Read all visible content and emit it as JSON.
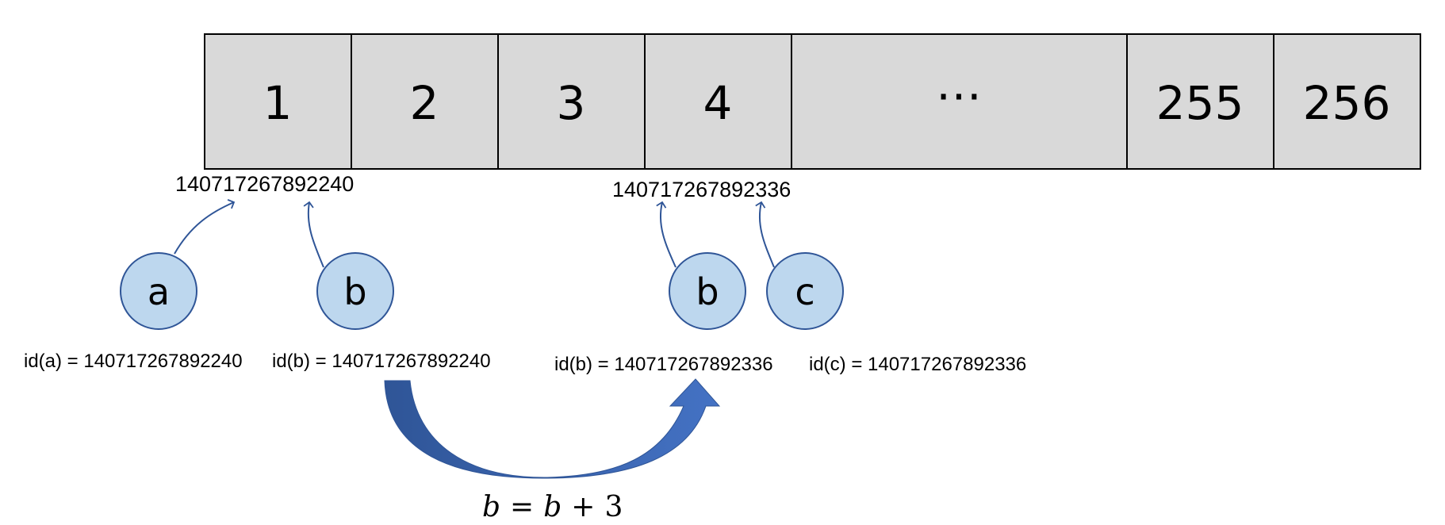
{
  "memory_cells": [
    "1",
    "2",
    "3",
    "4",
    "⋯",
    "255",
    "256"
  ],
  "addresses": {
    "first": "140717267892240",
    "second": "140717267892336"
  },
  "nodes": {
    "a1": "a",
    "b1": "b",
    "b2": "b",
    "c1": "c"
  },
  "id_labels": {
    "a": "id(a) = 140717267892240",
    "b_before": "id(b) = 140717267892240",
    "b_after": "id(b) = 140717267892336",
    "c": "id(c) = 140717267892336"
  },
  "equation": {
    "lhs": "b",
    "eq": "=",
    "rhs_var": "b",
    "plus": "+",
    "rhs_num": "3"
  },
  "colors": {
    "cell_fill": "#d9d9d9",
    "node_fill": "#bdd7ee",
    "node_stroke": "#2f5597",
    "arrow_dark": "#2f5597",
    "arrow_light": "#4472c4"
  }
}
